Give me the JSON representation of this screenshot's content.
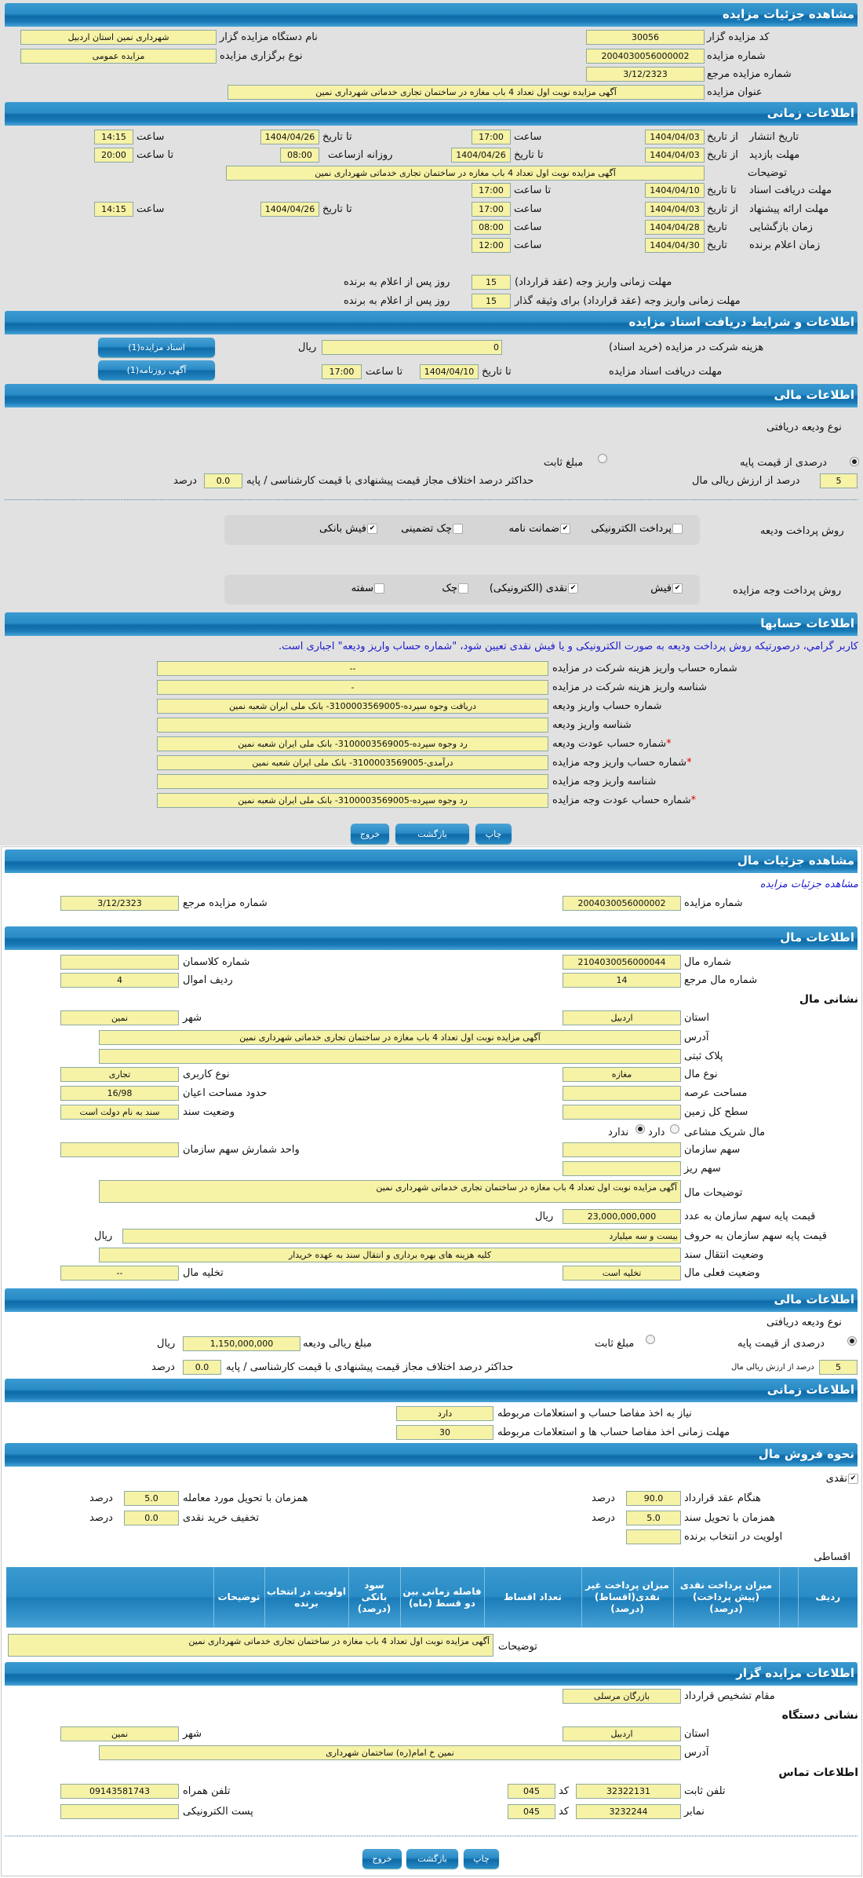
{
  "auction": {
    "title": "مشاهده جزئیات مزایده",
    "code_label": "کد مزایده گزار",
    "code": "30056",
    "org_label": "نام دستگاه مزایده گزار",
    "org": "شهرداری نمین استان اردبیل",
    "number_label": "شماره مزایده",
    "number": "2004030056000002",
    "type_label": "نوع برگزاری مزایده",
    "type": "مزایده عمومی",
    "ref_label": "شماره مزایده مرجع",
    "ref": "3/12/2323",
    "subject_label": "عنوان مزایده",
    "subject": "آگهی مزایده نوبت اول تعداد 4 باب مغازه در ساختمان تجاری خدماتی شهرداری نمین"
  },
  "timing": {
    "title": "اطلاعات زمانی",
    "from_date": "از تاریخ",
    "to_date": "تا تاریخ",
    "date": "تاریخ",
    "hour": "ساعت",
    "to_hour": "تا ساعت",
    "daily_from": "روزانه ازساعت",
    "publish_label": "تاریخ انتشار",
    "publish_from": "1404/04/03",
    "publish_from_time": "17:00",
    "publish_to": "1404/04/26",
    "publish_to_time": "14:15",
    "visit_label": "مهلت بازدید",
    "visit_from": "1404/04/03",
    "visit_to": "1404/04/26",
    "visit_daily_from": "08:00",
    "visit_to_time": "20:00",
    "desc_label": "توضیحات",
    "desc": "آگهی مزایده نوبت اول تعداد 4 باب مغازه در ساختمان تجاری خدماتی شهرداری نمین",
    "docs_label": "مهلت دریافت اسناد",
    "docs_to": "1404/04/10",
    "docs_to_time": "17:00",
    "offer_label": "مهلت ارائه پیشنهاد",
    "offer_from": "1404/04/03",
    "offer_from_time": "17:00",
    "offer_to": "1404/04/26",
    "offer_to_time": "14:15",
    "opening_label": "زمان بازگشایی",
    "opening_date": "1404/04/28",
    "opening_time": "08:00",
    "winner_label": "زمان اعلام برنده",
    "winner_date": "1404/04/30",
    "winner_time": "12:00",
    "contract_label": "مهلت زمانی واریز وجه (عقد قرارداد)",
    "contract_days": "15",
    "days_suffix": "روز پس از اعلام به برنده",
    "contract2_label": "مهلت زمانی واریز وجه (عقد قرارداد) برای وثیقه گذار",
    "contract2_days": "15"
  },
  "docs": {
    "title": "اطلاعات و شرایط دریافت اسناد مزایده",
    "fee_label": "هزینه شرکت در مزایده (خرید اسناد)",
    "fee": "0",
    "rial": "ریال",
    "deadline_label": "مهلت دریافت اسناد مزایده",
    "to_date": "تا تاریخ",
    "deadline_date": "1404/04/10",
    "to_hour": "تا ساعت",
    "deadline_time": "17:00",
    "btn_docs": "اسناد مزایده(1)",
    "btn_ad": "آگهی روزنامه(1)"
  },
  "finance": {
    "title": "اطلاعات مالی",
    "deposit_type_label": "نوع ودیعه دریافتی",
    "opt_percent": "درصدی از قیمت پایه",
    "opt_fixed": "مبلغ ثابت",
    "selected": "درصدی از قیمت پایه",
    "percent": "5",
    "percent_label": "درصد از ارزش ریالی مال",
    "max_diff_label": "حداکثر درصد اختلاف مجاز قیمت پیشنهادی با قیمت کارشناسی / پایه",
    "max_diff": "0.0",
    "percent_unit": "درصد",
    "deposit_pay_label": "روش پرداخت ودیعه",
    "deposit_methods": [
      {
        "label": "پرداخت الکترونیکی",
        "checked": false
      },
      {
        "label": "ضمانت نامه",
        "checked": true
      },
      {
        "label": "چک تضمینی",
        "checked": false
      },
      {
        "label": "فیش بانکی",
        "checked": true
      }
    ],
    "auction_pay_label": "روش پرداخت وجه مزایده",
    "auction_methods": [
      {
        "label": "فیش",
        "checked": true
      },
      {
        "label": "نقدی (الکترونیکی)",
        "checked": true
      },
      {
        "label": "چک",
        "checked": false
      },
      {
        "label": "سفته",
        "checked": false
      }
    ]
  },
  "accounts": {
    "title": "اطلاعات حسابها",
    "notice": "کاربر گرامي، درصورتيکه روش پرداخت وديعه به صورت الکترونيکی و يا فيش نقدی تعيين شود، \"شماره حساب واريز وديعه\" اجباری است.",
    "rows": [
      {
        "label": "شماره حساب واریز هزینه شرکت در مزایده",
        "value": "--",
        "required": ""
      },
      {
        "label": "شناسه واریز هزینه شرکت در مزایده",
        "value": "-",
        "required": ""
      },
      {
        "label": "شماره حساب واریز ودیعه",
        "value": "دریافت وجوه سپرده-3100003569005- بانک ملی ایران شعبه نمین",
        "required": ""
      },
      {
        "label": "شناسه واریز ودیعه",
        "value": "",
        "required": ""
      },
      {
        "label": "شماره حساب عودت ودیعه",
        "value": "رد وجوه سپرده-3100003569005- بانک ملی ایران شعبه نمین",
        "required": "*"
      },
      {
        "label": "شماره حساب واریز وجه مزایده",
        "value": "درآمدی-3100003569005- بانک ملی ایران شعبه نمین",
        "required": "*"
      },
      {
        "label": "شناسه واریز وجه مزایده",
        "value": "",
        "required": ""
      },
      {
        "label": "شماره حساب عودت وجه مزایده",
        "value": "رد وجوه سپرده-3100003569005- بانک ملی ایران شعبه نمین",
        "required": "*"
      }
    ]
  },
  "actions": {
    "print": "چاپ",
    "back": "بازگشت",
    "exit": "خروج"
  },
  "item": {
    "title": "مشاهده جزئیات مال",
    "link": "مشاهده جزئیات مزایده",
    "auction_number_label": "شماره مزایده",
    "auction_number": "2004030056000002",
    "ref_label": "شماره مزایده مرجع",
    "ref": "3/12/2323",
    "info_title": "اطلاعات مال",
    "number_label": "شماره مال",
    "number": "2104030056000044",
    "class_label": "شماره کلاسمان",
    "class": "",
    "ref_item_label": "شماره مال مرجع",
    "ref_item": "14",
    "row_label": "ردیف اموال",
    "row": "4",
    "address_title": "نشانی مال",
    "province_label": "استان",
    "province": "اردبیل",
    "city_label": "شهر",
    "city": "نمین",
    "address_label": "آدرس",
    "address": "آگهی مزایده نوبت اول تعداد 4 باب مغازه در ساختمان تجاری خدماتی شهرداری نمین",
    "plate_label": "پلاک ثبتی",
    "plate": "",
    "kind_label": "نوع مال",
    "kind": "مغازه",
    "usage_label": "نوع کاربری",
    "usage": "تجاری",
    "land_area_label": "مساحت عرصه",
    "land_area": "",
    "building_area_label": "حدود مساحت اعیان",
    "building_area": "16/98",
    "total_area_label": "سطح کل زمین",
    "total_area": "",
    "deed_label": "وضعیت سند",
    "deed": "سند به نام دولت است",
    "shared_label": "مال شریک مشاعی",
    "shared_yes": "دارد",
    "shared_no": "ندارد",
    "shared_selected": "ندارد",
    "share_label": "سهم سازمان",
    "share": "",
    "share_unit_label": "واحد شمارش سهم سازمان",
    "share_unit": "",
    "small_share_label": "سهم ریز",
    "small_share": "",
    "desc_label": "توضیحات مال",
    "desc": "آگهی مزایده نوبت اول تعداد 4 باب مغازه در ساختمان تجاری خدماتی شهرداری نمین",
    "price_num_label": "قیمت پایه سهم سازمان به عدد",
    "price_num": "23,000,000,000",
    "rial": "ریال",
    "price_words_label": "قیمت پایه سهم سازمان به حروف",
    "price_words": "بیست و سه میلیارد",
    "transfer_label": "وضعیت انتقال سند",
    "transfer": "کلیه هزینه های بهره برداری و انتقال سند به عهده خریدار",
    "status_label": "وضعیت فعلی مال",
    "status": "تخلیه است",
    "evac_label": "تخلیه مال",
    "evac": "--"
  },
  "item_finance": {
    "title": "اطلاعات مالی",
    "deposit_type_label": "نوع ودیعه دریافتی",
    "opt_percent": "درصدی از قیمت پایه",
    "opt_fixed": "مبلغ ثابت",
    "selected": "درصدی از قیمت پایه",
    "amount_label": "مبلغ ریالی ودیعه",
    "amount": "1,150,000,000",
    "rial": "ریال",
    "percent": "5",
    "percent_label": "درصد از ارزش ریالی مال",
    "max_diff_label": "حداکثر درصد اختلاف مجاز قیمت پیشنهادی با قیمت کارشناسی / پایه",
    "max_diff": "0.0",
    "percent_unit": "درصد"
  },
  "item_timing": {
    "title": "اطلاعات زمانی",
    "clearance_label": "نیاز به اخذ مفاصا حساب و استعلامات مربوطه",
    "clearance": "دارد",
    "clearance_days_label": "مهلت زمانی اخذ مفاصا حساب ها و استعلامات مربوطه",
    "clearance_days": "30"
  },
  "sale": {
    "title": "نحوه فروش مال",
    "cash_label": "نقدی",
    "cash_checked": true,
    "percent_unit": "درصد",
    "on_contract_label": "هنگام عقد قرارداد",
    "on_contract": "90.0",
    "on_delivery_label": "همزمان با تحویل مورد معامله",
    "on_delivery": "5.0",
    "on_deed_label": "همزمان با تحویل سند",
    "on_deed": "5.0",
    "discount_label": "تخفیف خرید نقدی",
    "discount": "0.0",
    "priority_label": "اولویت در انتخاب برنده",
    "priority": "",
    "installment_label": "اقساطی",
    "columns": [
      "ردیف",
      "",
      "میزان پرداخت نقدی (پیش پرداخت) (درصد)",
      "میزان پرداخت غیر نقدی(اقساط) (درصد)",
      "تعداد اقساط",
      "فاصله زمانی بین دو قسط (ماه)",
      "سود بانکی (درصد)",
      "اولویت در انتخاب برنده",
      "توضیحات",
      ""
    ],
    "desc_label": "توضیحات",
    "desc": "آگهی مزایده نوبت اول تعداد 4 باب مغازه در ساختمان تجاری خدماتی شهرداری نمین"
  },
  "organizer": {
    "title": "اطلاعات مزایده گزار",
    "authority_label": "مقام تشخیص قرارداد",
    "authority": "بازرگان مرسلی",
    "address_title": "نشانی دستگاه",
    "province_label": "استان",
    "province": "اردبیل",
    "city_label": "شهر",
    "city": "نمین",
    "address_label": "آدرس",
    "address": "نمین خ امام(ره) ساختمان شهرداری",
    "contact_title": "اطلاعات تماس",
    "phone_label": "تلفن ثابت",
    "phone": "32322131",
    "code_label": "کد",
    "phone_code": "045",
    "mobile_label": "تلفن همراه",
    "mobile": "09143581743",
    "fax_label": "نمابر",
    "fax": "3232244",
    "fax_code": "045",
    "email_label": "پست الکترونیکی",
    "email": ""
  },
  "colors": {
    "header": "#1b7cb8",
    "field": "#f6f2a6",
    "notice": "#1a1ad0",
    "required": "#dd0000"
  }
}
